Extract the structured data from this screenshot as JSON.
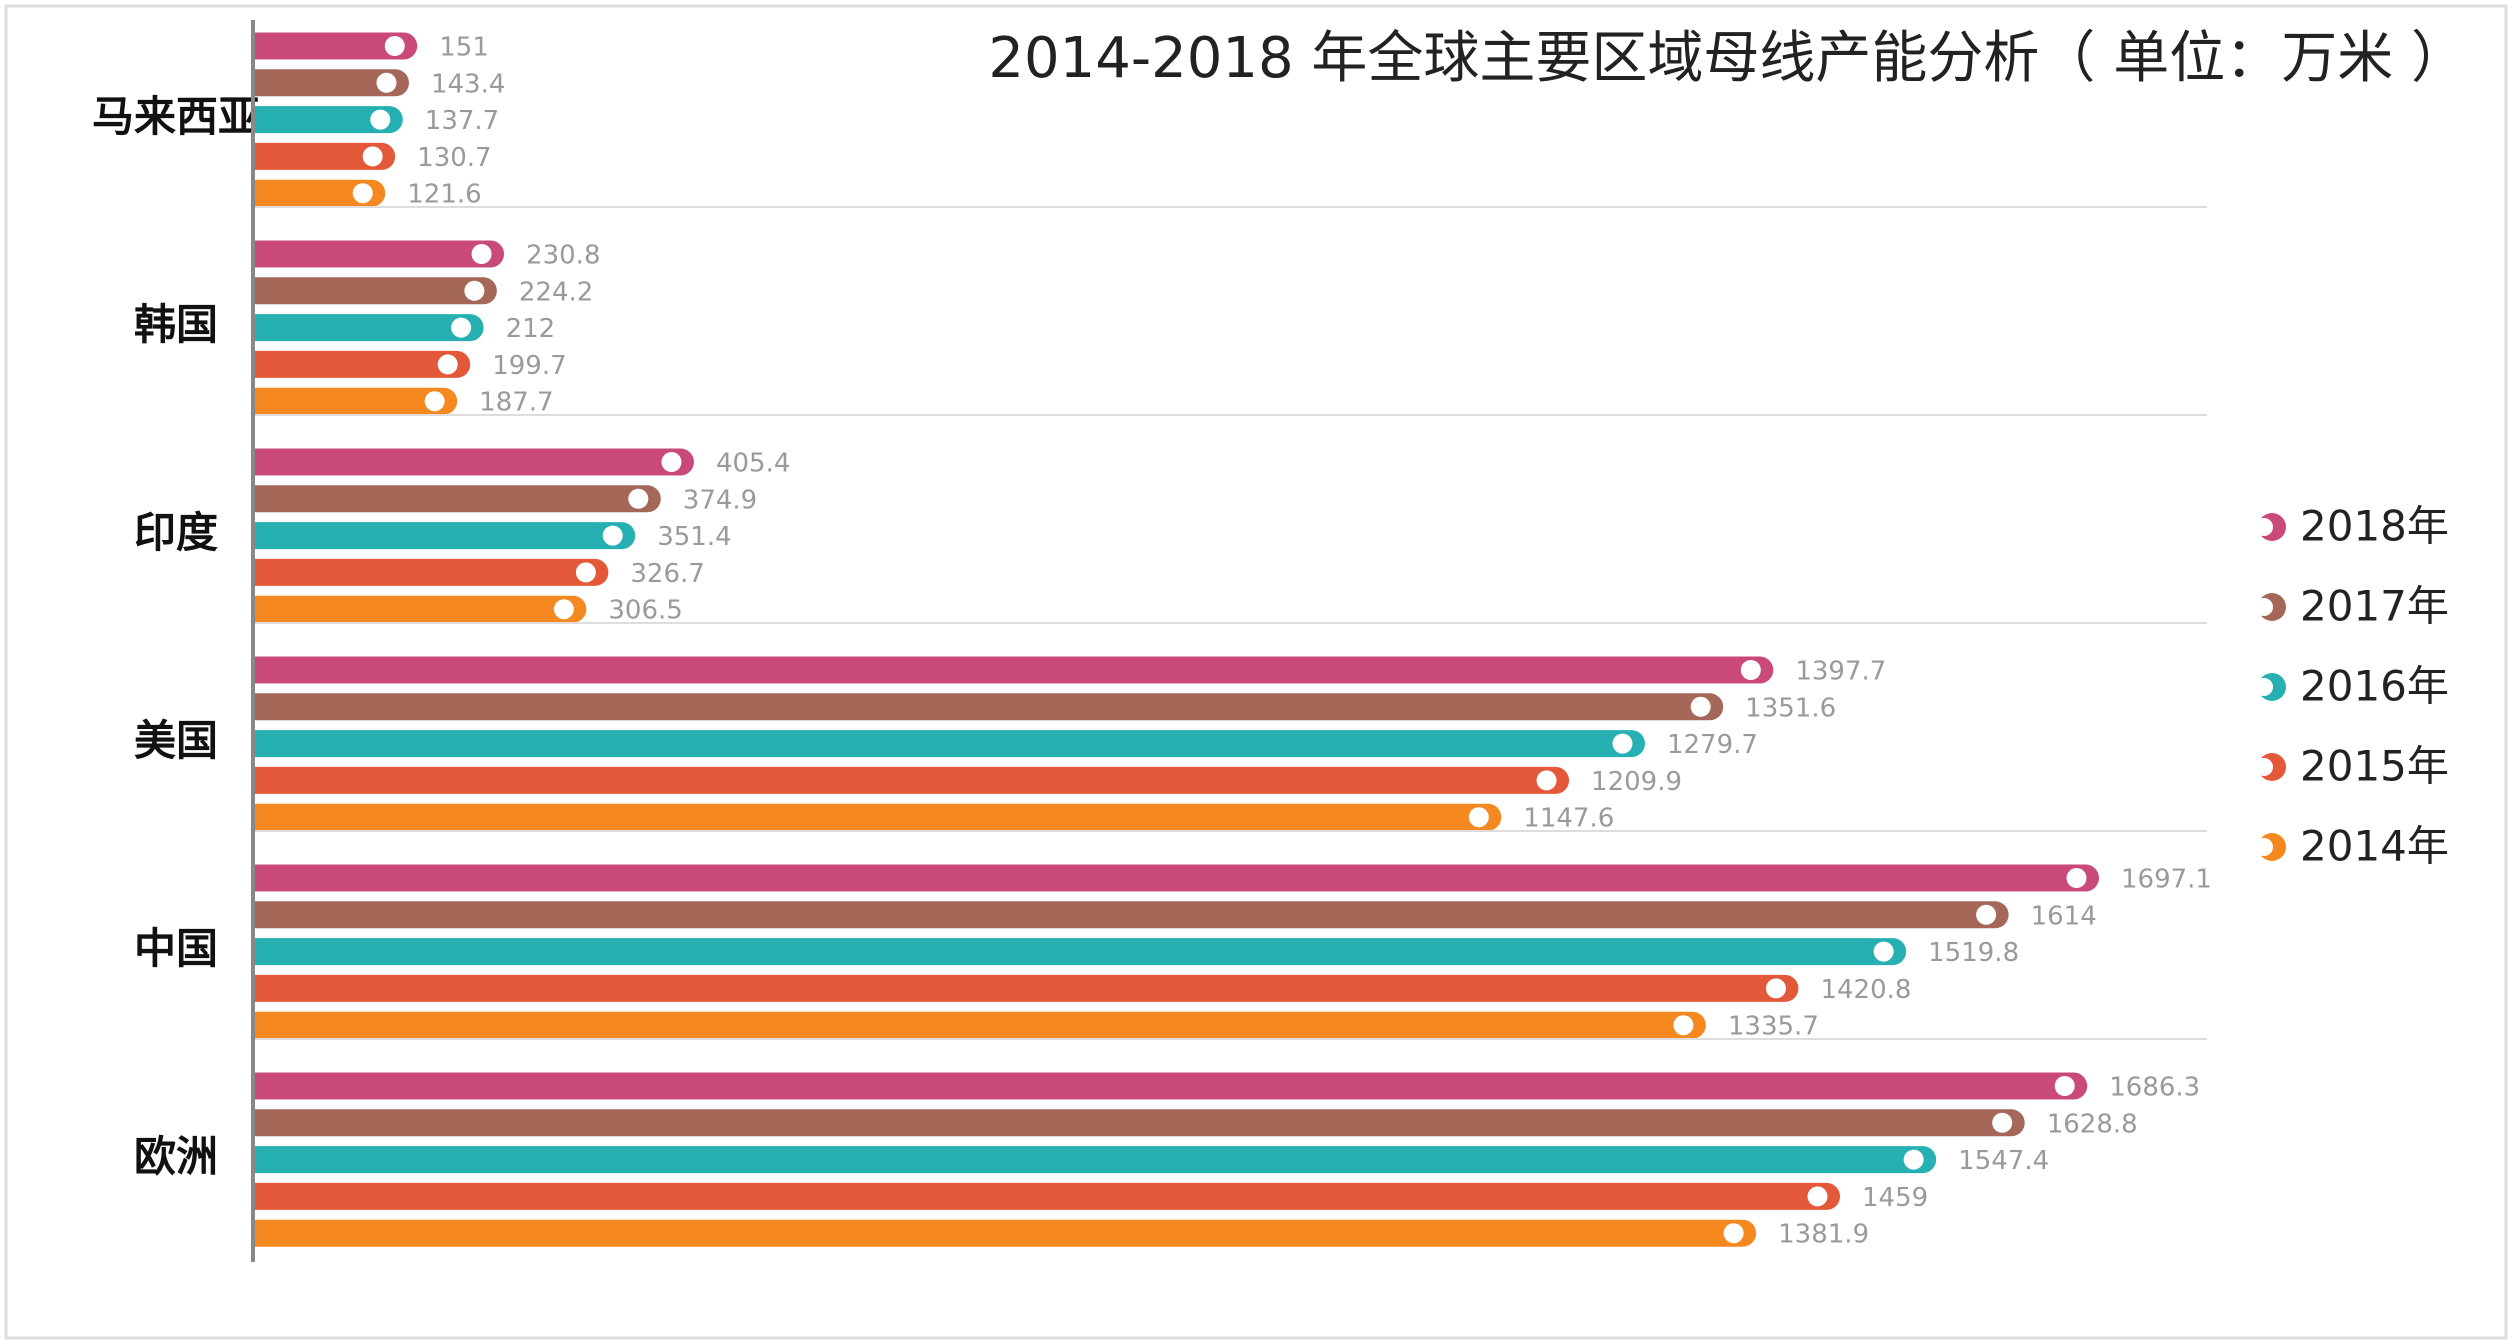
{
  "chart_data": {
    "type": "bar",
    "orientation": "horizontal",
    "title": "2014-2018 年全球主要区域母线产能分析（ 单位：万米 ）",
    "categories": [
      "马来西亚",
      "韩国",
      "印度",
      "美国",
      "中国",
      "欧洲"
    ],
    "series": [
      {
        "name": "2018年",
        "color": "#c8497a",
        "values": [
          151,
          230.8,
          405.4,
          1397.7,
          1697.1,
          1686.3
        ]
      },
      {
        "name": "2017年",
        "color": "#a56858",
        "values": [
          143.4,
          224.2,
          374.9,
          1351.6,
          1614,
          1628.8
        ]
      },
      {
        "name": "2016年",
        "color": "#27b0b2",
        "values": [
          137.7,
          212,
          351.4,
          1279.7,
          1519.8,
          1547.4
        ]
      },
      {
        "name": "2015年",
        "color": "#e4583a",
        "values": [
          130.7,
          199.7,
          326.7,
          1209.9,
          1420.8,
          1459
        ]
      },
      {
        "name": "2014年",
        "color": "#f5891f",
        "values": [
          121.6,
          187.7,
          306.5,
          1147.6,
          1335.7,
          1381.9
        ]
      }
    ],
    "legend": "right",
    "data_labels": true
  }
}
